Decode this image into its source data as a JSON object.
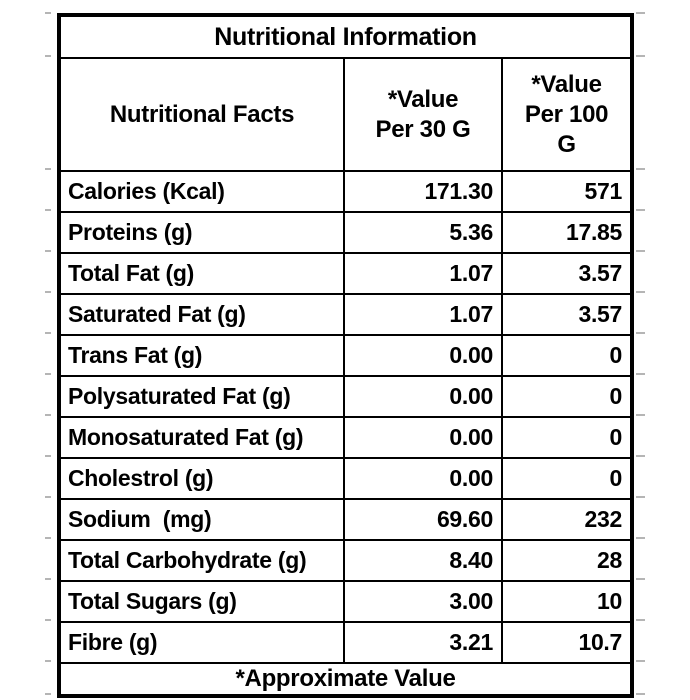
{
  "colors": {
    "border": "#000000",
    "text": "#000000",
    "background": "#ffffff",
    "gridline_stub": "#b5b5b5"
  },
  "chart_data": {
    "type": "table",
    "title": "Nutritional Information",
    "columns": [
      "Nutritional Facts",
      "*Value Per 30 G",
      "*Value Per 100 G"
    ],
    "column_display": [
      "Nutritional Facts",
      "*Value\nPer 30 G",
      "*Value\nPer 100\nG"
    ],
    "rows": [
      {
        "label": "Calories (Kcal)",
        "per30": "171.30",
        "per100": "571"
      },
      {
        "label": "Proteins (g)",
        "per30": "5.36",
        "per100": "17.85"
      },
      {
        "label": "Total Fat (g)",
        "per30": "1.07",
        "per100": "3.57"
      },
      {
        "label": "Saturated Fat (g)",
        "per30": "1.07",
        "per100": "3.57"
      },
      {
        "label": "Trans Fat (g)",
        "per30": "0.00",
        "per100": "0"
      },
      {
        "label": "Polysaturated Fat (g)",
        "per30": "0.00",
        "per100": "0"
      },
      {
        "label": "Monosaturated Fat (g)",
        "per30": "0.00",
        "per100": "0"
      },
      {
        "label": "Cholestrol (g)",
        "per30": "0.00",
        "per100": "0"
      },
      {
        "label": "Sodium  (mg)",
        "per30": "69.60",
        "per100": "232"
      },
      {
        "label": "Total Carbohydrate (g)",
        "per30": "8.40",
        "per100": "28"
      },
      {
        "label": "Total Sugars (g)",
        "per30": "3.00",
        "per100": "10"
      },
      {
        "label": "Fibre (g)",
        "per30": "3.21",
        "per100": "10.7"
      }
    ],
    "footnote": "*Approximate Value"
  }
}
